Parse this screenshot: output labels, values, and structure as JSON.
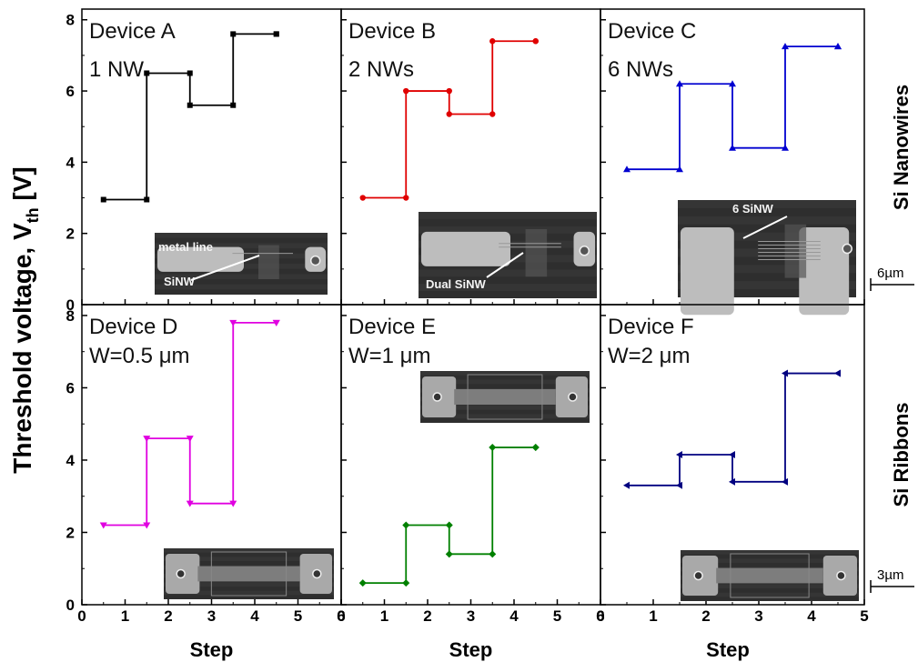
{
  "figure": {
    "ylabel_main": "Threshold voltage, V",
    "ylabel_sub": "th",
    "ylabel_unit": " [V]",
    "row_labels": [
      "Si Nanowires",
      "Si Ribbons"
    ],
    "scalebars": [
      "6µm",
      "3µm"
    ],
    "xlabel": "Step"
  },
  "colors": {
    "A": "#000000",
    "B": "#e00000",
    "C": "#0000d0",
    "D": "#e000e0",
    "E": "#008000",
    "F": "#000080"
  },
  "chart_data": [
    {
      "type": "line",
      "subtype": "step",
      "title": "Device A",
      "subtitle": "1 NW",
      "marker": "square",
      "x": [
        0.5,
        1.5,
        2.5,
        3.5,
        4.5
      ],
      "y": [
        2.95,
        6.5,
        5.6,
        7.6,
        7.6
      ],
      "xlim": [
        0,
        6
      ],
      "ylim": [
        0,
        8.3
      ],
      "xticks": [
        0,
        1,
        2,
        3,
        4,
        5
      ],
      "yticks": [
        0,
        2,
        4,
        6,
        8
      ],
      "inset": {
        "labels": [
          "metal line",
          "SiNW"
        ]
      }
    },
    {
      "type": "line",
      "subtype": "step",
      "title": "Device B",
      "subtitle": "2 NWs",
      "marker": "circle",
      "x": [
        0.5,
        1.5,
        2.5,
        3.5,
        4.5
      ],
      "y": [
        3.0,
        6.0,
        5.35,
        7.4,
        7.4
      ],
      "xlim": [
        0,
        6
      ],
      "ylim": [
        0,
        8.3
      ],
      "xticks": [
        0,
        1,
        2,
        3,
        4,
        5
      ],
      "inset": {
        "labels": [
          "Dual SiNW"
        ]
      }
    },
    {
      "type": "line",
      "subtype": "step",
      "title": "Device C",
      "subtitle": "6 NWs",
      "marker": "triangle-up",
      "x": [
        0.5,
        1.5,
        2.5,
        3.5,
        4.5
      ],
      "y": [
        3.8,
        6.2,
        4.4,
        7.25,
        7.25
      ],
      "xlim": [
        0,
        5
      ],
      "ylim": [
        0,
        8.3
      ],
      "xticks": [
        0,
        1,
        2,
        3,
        4,
        5
      ],
      "inset": {
        "labels": [
          "6 SiNW"
        ]
      }
    },
    {
      "type": "line",
      "subtype": "step",
      "title": "Device D",
      "subtitle": "W=0.5 μm",
      "marker": "triangle-down",
      "x": [
        0.5,
        1.5,
        2.5,
        3.5,
        4.5
      ],
      "y": [
        2.2,
        4.6,
        2.8,
        7.8,
        7.8
      ],
      "xlim": [
        0,
        6
      ],
      "ylim": [
        0,
        8.3
      ],
      "xticks": [
        0,
        1,
        2,
        3,
        4,
        5,
        6
      ],
      "xlabel": "Step",
      "yticks": [
        0,
        2,
        4,
        6,
        8
      ],
      "inset": {
        "labels": []
      }
    },
    {
      "type": "line",
      "subtype": "step",
      "title": "Device E",
      "subtitle": "W=1 μm",
      "marker": "diamond",
      "x": [
        0.5,
        1.5,
        2.5,
        3.5,
        4.5
      ],
      "y": [
        0.6,
        2.2,
        1.4,
        4.35,
        4.35
      ],
      "xlim": [
        0,
        6
      ],
      "ylim": [
        0,
        8.3
      ],
      "xticks": [
        0,
        1,
        2,
        3,
        4,
        5,
        6
      ],
      "xlabel": "Step",
      "inset": {
        "labels": []
      }
    },
    {
      "type": "line",
      "subtype": "step",
      "title": "Device F",
      "subtitle": "W=2 μm",
      "marker": "triangle-left",
      "x": [
        0.5,
        1.5,
        2.5,
        3.5,
        4.5
      ],
      "y": [
        3.3,
        4.15,
        3.4,
        6.4,
        6.4
      ],
      "xlim": [
        0,
        5
      ],
      "ylim": [
        0,
        8.3
      ],
      "xticks": [
        0,
        1,
        2,
        3,
        4,
        5
      ],
      "xlabel": "Step",
      "inset": {
        "labels": []
      }
    }
  ]
}
